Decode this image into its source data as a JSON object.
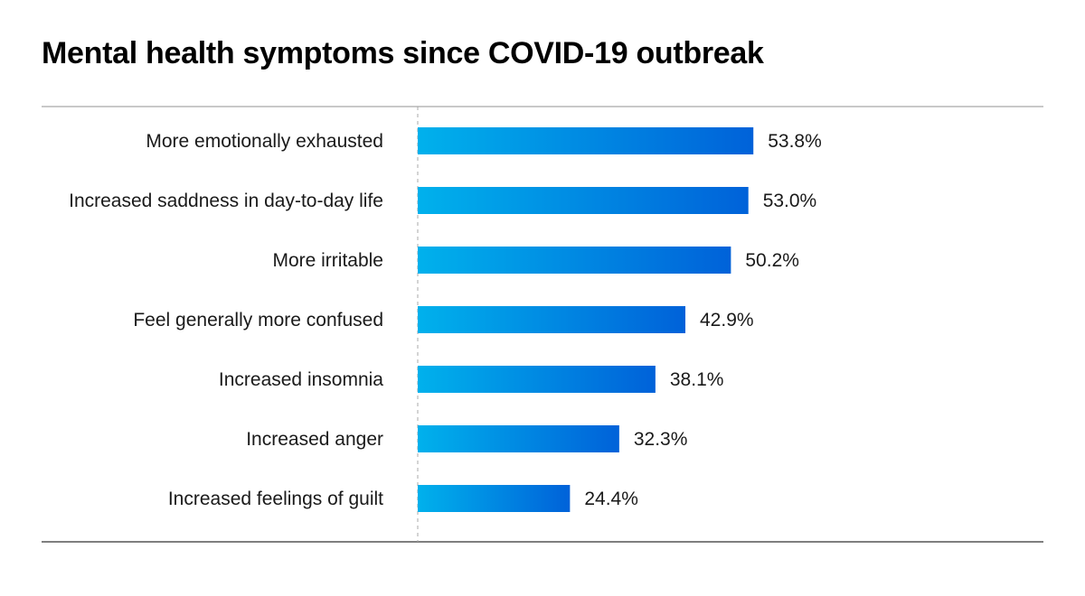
{
  "chart_data": {
    "type": "bar",
    "orientation": "horizontal",
    "title": "Mental health symptoms since COVID-19 outbreak",
    "categories": [
      "More emotionally exhausted",
      "Increased saddness in day-to-day life",
      "More irritable",
      "Feel generally more confused",
      "Increased insomnia",
      "Increased anger",
      "Increased feelings of guilt"
    ],
    "values": [
      53.8,
      53.0,
      50.2,
      42.9,
      38.1,
      32.3,
      24.4
    ],
    "value_labels": [
      "53.8%",
      "53.0%",
      "50.2%",
      "42.9%",
      "38.1%",
      "32.3%",
      "24.4%"
    ],
    "xlim": [
      0,
      100
    ],
    "grid": false,
    "legend": "none",
    "bar_gradient": [
      "#00b1ec",
      "#0062d9"
    ]
  }
}
